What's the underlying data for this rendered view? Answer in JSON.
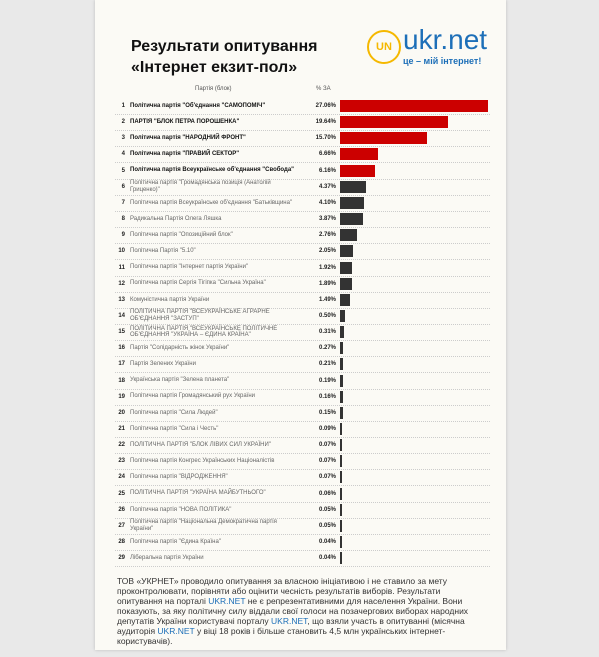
{
  "header": {
    "title_lines": [
      "Результати опитування",
      "«Інтернет екзит-пол»"
    ],
    "logo_text": "ukr.net",
    "logo_slogan": "це – мій інтернет!",
    "logo_mark": "UN"
  },
  "table": {
    "columns": [
      "Партія (блок)",
      "% ЗА"
    ],
    "rows": [
      {
        "n": 1,
        "party": "Політична партія \"Об'єднання \"САМОПОМІЧ\"",
        "value": 27.06,
        "value_label": "27.06%",
        "bold": true,
        "color": "#cc0000"
      },
      {
        "n": 2,
        "party": "ПАРТІЯ \"БЛОК ПЕТРА ПОРОШЕНКА\"",
        "value": 19.64,
        "value_label": "19.64%",
        "bold": true,
        "color": "#cc0000"
      },
      {
        "n": 3,
        "party": "Політична партія \"НАРОДНИЙ ФРОНТ\"",
        "value": 15.7,
        "value_label": "15.70%",
        "bold": true,
        "color": "#cc0000"
      },
      {
        "n": 4,
        "party": "Політична партія \"ПРАВИЙ СЕКТОР\"",
        "value": 6.66,
        "value_label": "6.66%",
        "bold": true,
        "color": "#cc0000"
      },
      {
        "n": 5,
        "party": "Політична партія Всеукраїнське об'єднання \"Свобода\"",
        "value": 6.16,
        "value_label": "6.16%",
        "bold": true,
        "color": "#cc0000"
      },
      {
        "n": 6,
        "party": "Політична партія \"Громадянська позиція (Анатолій Гриценко)\"",
        "value": 4.37,
        "value_label": "4.37%",
        "bold": false,
        "color": "#333333"
      },
      {
        "n": 7,
        "party": "Політична партія Всеукраїнське об'єднання \"Батьківщина\"",
        "value": 4.1,
        "value_label": "4.10%",
        "bold": false,
        "color": "#333333"
      },
      {
        "n": 8,
        "party": "Радикальна Партія Олега Ляшка",
        "value": 3.87,
        "value_label": "3.87%",
        "bold": false,
        "color": "#333333"
      },
      {
        "n": 9,
        "party": "Політична партія \"Опозиційний блок\"",
        "value": 2.76,
        "value_label": "2.76%",
        "bold": false,
        "color": "#333333"
      },
      {
        "n": 10,
        "party": "Політична Партія \"5.10\"",
        "value": 2.05,
        "value_label": "2.05%",
        "bold": false,
        "color": "#333333"
      },
      {
        "n": 11,
        "party": "Політична партія \"Інтернет партія України\"",
        "value": 1.92,
        "value_label": "1.92%",
        "bold": false,
        "color": "#333333"
      },
      {
        "n": 12,
        "party": "Політична партія Сергія Тігіпка \"Сильна Україна\"",
        "value": 1.89,
        "value_label": "1.89%",
        "bold": false,
        "color": "#333333"
      },
      {
        "n": 13,
        "party": "Комуністична партія України",
        "value": 1.49,
        "value_label": "1.49%",
        "bold": false,
        "color": "#333333"
      },
      {
        "n": 14,
        "party": "ПОЛІТИЧНА ПАРТІЯ \"ВСЕУКРАЇНСЬКЕ АГРАРНЕ ОБ'ЄДНАННЯ \"ЗАСТУП\"",
        "value": 0.5,
        "value_label": "0.50%",
        "bold": false,
        "color": "#333333"
      },
      {
        "n": 15,
        "party": "ПОЛІТИЧНА ПАРТІЯ \"ВСЕУКРАЇНСЬКЕ ПОЛІТИЧНЕ ОБ'ЄДНАННЯ \"УКРАЇНА – ЄДИНА КРАЇНА\"",
        "value": 0.31,
        "value_label": "0.31%",
        "bold": false,
        "color": "#333333"
      },
      {
        "n": 16,
        "party": "Партія \"Солідарність жінок України\"",
        "value": 0.27,
        "value_label": "0.27%",
        "bold": false,
        "color": "#333333"
      },
      {
        "n": 17,
        "party": "Партія Зелених України",
        "value": 0.21,
        "value_label": "0.21%",
        "bold": false,
        "color": "#333333"
      },
      {
        "n": 18,
        "party": "Українська партія \"Зелена планета\"",
        "value": 0.19,
        "value_label": "0.19%",
        "bold": false,
        "color": "#333333"
      },
      {
        "n": 19,
        "party": "Політична партія Громадянський рух України",
        "value": 0.16,
        "value_label": "0.16%",
        "bold": false,
        "color": "#333333"
      },
      {
        "n": 20,
        "party": "Політична партія \"Сила Людей\"",
        "value": 0.15,
        "value_label": "0.15%",
        "bold": false,
        "color": "#333333"
      },
      {
        "n": 21,
        "party": "Політична партія \"Сила і Честь\"",
        "value": 0.09,
        "value_label": "0.09%",
        "bold": false,
        "color": "#333333"
      },
      {
        "n": 22,
        "party": "ПОЛІТИЧНА ПАРТІЯ \"БЛОК ЛІВИХ СИЛ УКРАЇНИ\"",
        "value": 0.07,
        "value_label": "0.07%",
        "bold": false,
        "color": "#333333"
      },
      {
        "n": 23,
        "party": "Політична партія Конгрес Українських Націоналістів",
        "value": 0.07,
        "value_label": "0.07%",
        "bold": false,
        "color": "#333333"
      },
      {
        "n": 24,
        "party": "Політична партія \"ВІДРОДЖЕННЯ\"",
        "value": 0.07,
        "value_label": "0.07%",
        "bold": false,
        "color": "#333333"
      },
      {
        "n": 25,
        "party": "ПОЛІТИЧНА ПАРТІЯ \"УКРАЇНА МАЙБУТНЬОГО\"",
        "value": 0.06,
        "value_label": "0.06%",
        "bold": false,
        "color": "#333333"
      },
      {
        "n": 26,
        "party": "Політична партія \"НОВА ПОЛІТИКА\"",
        "value": 0.05,
        "value_label": "0.05%",
        "bold": false,
        "color": "#333333"
      },
      {
        "n": 27,
        "party": "Політична партія \"Національна Демократична партія України\"",
        "value": 0.05,
        "value_label": "0.05%",
        "bold": false,
        "color": "#333333"
      },
      {
        "n": 28,
        "party": "Політична партія \"Єдина Країна\"",
        "value": 0.04,
        "value_label": "0.04%",
        "bold": false,
        "color": "#333333"
      },
      {
        "n": 29,
        "party": "Ліберальна партія України",
        "value": 0.04,
        "value_label": "0.04%",
        "bold": false,
        "color": "#333333"
      }
    ]
  },
  "footer": {
    "segments": [
      {
        "text": "ТОВ «УКРНЕТ» проводило опитування за власною ініціативою і не ставило за мету проконтролювати, порівняти або оцінити чесність результатів виборів. Результати опитування на порталі ",
        "link": false
      },
      {
        "text": "UKR.NET",
        "link": true
      },
      {
        "text": " не є репрезентативними для населення України. Вони показують, за яку політичну силу віддали свої голоси на позачергових виборах народних депутатів України користувачі порталу ",
        "link": false
      },
      {
        "text": "UKR.NET",
        "link": true
      },
      {
        "text": ", що взяли участь в опитуванні (місячна аудиторія ",
        "link": false
      },
      {
        "text": "UKR.NET",
        "link": true
      },
      {
        "text": " у віці 18 років і більше становить 4,5 млн українських інтернет-користувачів).",
        "link": false
      }
    ]
  }
}
